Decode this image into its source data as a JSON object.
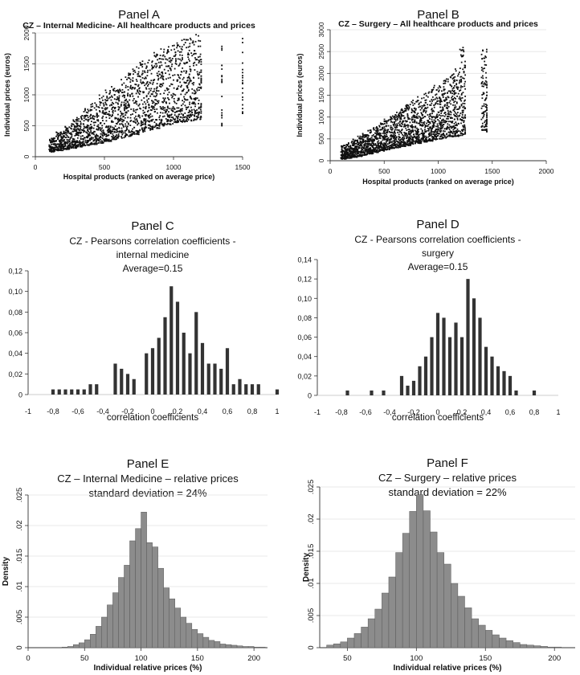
{
  "chart_data": [
    {
      "panel": "A",
      "type": "scatter",
      "heading": "Panel A",
      "title": "CZ – Internal Medicine- All healthcare products and prices",
      "xlabel": "Hospital products (ranked on average price)",
      "ylabel": "Individual  prices (euros)",
      "xlim": [
        0,
        1500
      ],
      "ylim": [
        0,
        2000
      ],
      "xticks": [
        "0",
        "500",
        "1000",
        "1500"
      ],
      "yticks": [
        "0",
        "500",
        "1000",
        "1500",
        "2000"
      ],
      "grid": true,
      "color": "#111111",
      "series": [
        {
          "name": "prices",
          "x": [
            100,
            150,
            200,
            250,
            300,
            350,
            400,
            450,
            500,
            550,
            600,
            650,
            700,
            750,
            800,
            850,
            900,
            950,
            1000,
            1050,
            1100,
            1150,
            1200,
            1350,
            1500
          ],
          "low": [
            80,
            100,
            120,
            140,
            160,
            180,
            200,
            220,
            250,
            280,
            300,
            330,
            360,
            400,
            430,
            460,
            500,
            520,
            550,
            560,
            580,
            600,
            620,
            500,
            700
          ],
          "high": [
            300,
            400,
            500,
            600,
            700,
            800,
            900,
            1000,
            1080,
            1150,
            1250,
            1350,
            1450,
            1550,
            1600,
            1700,
            1750,
            1800,
            1850,
            1900,
            1950,
            1980,
            1950,
            1900,
            2000
          ]
        }
      ]
    },
    {
      "panel": "B",
      "type": "scatter",
      "heading": "Panel B",
      "title": "CZ – Surgery – All healthcare products and prices",
      "xlabel": "Hospital products (ranked on average price)",
      "ylabel": "Individual  prices (euros)",
      "xlim": [
        0,
        2000
      ],
      "ylim": [
        0,
        3000
      ],
      "xticks": [
        "0",
        "500",
        "1000",
        "1500",
        "2000"
      ],
      "yticks": [
        "0",
        "500",
        "1000",
        "1500",
        "2000",
        "2500",
        "3000"
      ],
      "grid": true,
      "color": "#111111",
      "series": [
        {
          "name": "prices",
          "x": [
            100,
            150,
            200,
            250,
            300,
            350,
            400,
            450,
            500,
            550,
            600,
            650,
            700,
            750,
            800,
            850,
            900,
            950,
            1000,
            1050,
            1100,
            1150,
            1200,
            1250,
            1400,
            1450
          ],
          "low": [
            40,
            60,
            80,
            100,
            130,
            160,
            190,
            220,
            250,
            280,
            300,
            330,
            350,
            380,
            400,
            430,
            450,
            480,
            500,
            520,
            550,
            560,
            580,
            600,
            700,
            650
          ],
          "high": [
            350,
            420,
            500,
            560,
            620,
            700,
            780,
            860,
            950,
            1030,
            1120,
            1200,
            1300,
            1400,
            1480,
            1560,
            1640,
            1720,
            1800,
            1900,
            2000,
            2100,
            2600,
            2200,
            2550,
            1800
          ]
        }
      ]
    },
    {
      "panel": "C",
      "type": "bar",
      "heading": "Panel C",
      "title_lines": [
        "CZ - Pearsons correlation coefficients -",
        "internal medicine",
        "Average=0.15"
      ],
      "xlabel": "correlation coefficients",
      "ylabel": "",
      "xlim": [
        -1,
        1
      ],
      "ylim": [
        0,
        0.12
      ],
      "xticks": [
        "-1",
        "-0,8",
        "-0,6",
        "-0,4",
        "-0,2",
        "0",
        "0,2",
        "0,4",
        "0,6",
        "0,8",
        "1"
      ],
      "yticks": [
        "0",
        "0,02",
        "0,04",
        "0,06",
        "0,08",
        "0,10",
        "0,12"
      ],
      "grid": false,
      "color": "#333333",
      "x": [
        -0.8,
        -0.75,
        -0.7,
        -0.65,
        -0.6,
        -0.55,
        -0.5,
        -0.45,
        -0.3,
        -0.25,
        -0.2,
        -0.15,
        -0.05,
        0.0,
        0.05,
        0.1,
        0.15,
        0.2,
        0.25,
        0.3,
        0.35,
        0.4,
        0.45,
        0.5,
        0.55,
        0.6,
        0.65,
        0.7,
        0.75,
        0.8,
        0.85,
        1.0
      ],
      "values": [
        0.005,
        0.005,
        0.005,
        0.005,
        0.005,
        0.005,
        0.01,
        0.01,
        0.03,
        0.025,
        0.02,
        0.015,
        0.04,
        0.045,
        0.055,
        0.075,
        0.105,
        0.09,
        0.06,
        0.04,
        0.08,
        0.05,
        0.03,
        0.03,
        0.025,
        0.045,
        0.01,
        0.015,
        0.01,
        0.01,
        0.01,
        0.005
      ]
    },
    {
      "panel": "D",
      "type": "bar",
      "heading": "Panel D",
      "title_lines": [
        "CZ - Pearsons correlation coefficients -",
        "surgery",
        "Average=0.15"
      ],
      "xlabel": "correlation coefficients",
      "ylabel": "",
      "xlim": [
        -1,
        1
      ],
      "ylim": [
        0,
        0.14
      ],
      "xticks": [
        "-1",
        "-0,8",
        "-0,6",
        "-0,4",
        "-0,2",
        "0",
        "0,2",
        "0,4",
        "0,6",
        "0,8",
        "1"
      ],
      "yticks": [
        "0",
        "0,02",
        "0,04",
        "0,06",
        "0,08",
        "0,10",
        "0,12",
        "0,14"
      ],
      "grid": false,
      "color": "#333333",
      "x": [
        -0.75,
        -0.55,
        -0.45,
        -0.3,
        -0.25,
        -0.2,
        -0.15,
        -0.1,
        -0.05,
        0.0,
        0.05,
        0.1,
        0.15,
        0.2,
        0.25,
        0.3,
        0.35,
        0.4,
        0.45,
        0.5,
        0.55,
        0.6,
        0.65,
        0.8
      ],
      "values": [
        0.005,
        0.005,
        0.005,
        0.02,
        0.01,
        0.015,
        0.03,
        0.04,
        0.06,
        0.085,
        0.08,
        0.06,
        0.075,
        0.06,
        0.12,
        0.1,
        0.08,
        0.05,
        0.04,
        0.03,
        0.025,
        0.02,
        0.005,
        0.005
      ]
    },
    {
      "panel": "E",
      "type": "bar",
      "heading": "Panel E",
      "title_lines": [
        "CZ – Internal Medicine –  relative prices",
        "standard deviation = 24%"
      ],
      "xlabel": "Individual relative prices (%)",
      "ylabel": "Density",
      "xlim": [
        0,
        212
      ],
      "ylim": [
        0,
        0.025
      ],
      "xticks": [
        "0",
        "50",
        "100",
        "150",
        "200"
      ],
      "yticks": [
        "0",
        ".005",
        ".01",
        ".015",
        ".02",
        ".025"
      ],
      "bin_width": 5,
      "grid": true,
      "color": "#8c8c8c",
      "x": [
        30,
        35,
        40,
        45,
        50,
        55,
        60,
        65,
        70,
        75,
        80,
        85,
        90,
        95,
        100,
        105,
        110,
        115,
        120,
        125,
        130,
        135,
        140,
        145,
        150,
        155,
        160,
        165,
        170,
        175,
        180,
        185,
        190,
        195,
        200,
        205
      ],
      "values": [
        0.0001,
        0.0002,
        0.0005,
        0.0008,
        0.0013,
        0.0022,
        0.0035,
        0.005,
        0.007,
        0.009,
        0.0115,
        0.0135,
        0.0175,
        0.0195,
        0.0222,
        0.0172,
        0.0165,
        0.013,
        0.0098,
        0.008,
        0.0065,
        0.005,
        0.004,
        0.003,
        0.0023,
        0.0017,
        0.0012,
        0.001,
        0.0006,
        0.0005,
        0.0004,
        0.0003,
        0.0002,
        0.0002,
        0.0001,
        0.0001
      ]
    },
    {
      "panel": "F",
      "type": "bar",
      "heading": "Panel F",
      "title_lines": [
        "CZ –  Surgery –  relative prices",
        "standard deviation = 22%"
      ],
      "xlabel": "Individual relative prices (%)",
      "ylabel": "Density",
      "xlim": [
        30,
        215
      ],
      "ylim": [
        0,
        0.025
      ],
      "xticks": [
        "50",
        "100",
        "150",
        "200"
      ],
      "yticks": [
        "0",
        ".005",
        ".01",
        ".015",
        ".02",
        ".025"
      ],
      "bin_width": 5,
      "grid": true,
      "color": "#8c8c8c",
      "x": [
        35,
        40,
        45,
        50,
        55,
        60,
        65,
        70,
        75,
        80,
        85,
        90,
        95,
        100,
        105,
        110,
        115,
        120,
        125,
        130,
        135,
        140,
        145,
        150,
        155,
        160,
        165,
        170,
        175,
        180,
        185,
        190,
        195,
        200
      ],
      "values": [
        0.0004,
        0.0006,
        0.0009,
        0.0015,
        0.0022,
        0.0032,
        0.0045,
        0.006,
        0.0085,
        0.011,
        0.0148,
        0.0178,
        0.0212,
        0.0238,
        0.0213,
        0.018,
        0.0148,
        0.013,
        0.01,
        0.008,
        0.0062,
        0.0045,
        0.0035,
        0.0027,
        0.002,
        0.0015,
        0.0011,
        0.0008,
        0.0005,
        0.0004,
        0.0003,
        0.0002,
        0.0001,
        0.0001
      ]
    }
  ]
}
